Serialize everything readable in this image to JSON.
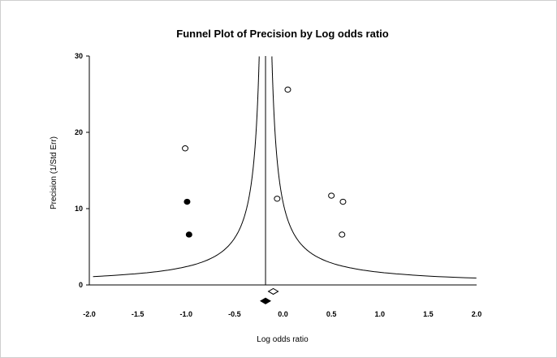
{
  "chart_data": {
    "type": "scatter",
    "title": "Funnel Plot of Precision by Log odds ratio",
    "xlabel": "Log odds ratio",
    "ylabel": "Precision (1/Std Err)",
    "xlim": [
      -2.0,
      2.0
    ],
    "ylim": [
      0,
      30
    ],
    "x_ticks": [
      "-2.0",
      "-1.5",
      "-1.0",
      "-0.5",
      "0.0",
      "0.5",
      "1.0",
      "1.5",
      "2.0"
    ],
    "y_ticks": [
      "0",
      "10",
      "20",
      "30"
    ],
    "pooled_estimate": -0.18,
    "adjusted_estimate": -0.1,
    "grid": false,
    "legend": "none",
    "series": [
      {
        "marker": "open-circle",
        "points": [
          {
            "x": -1.01,
            "y": 17.9
          },
          {
            "x": 0.05,
            "y": 25.6
          },
          {
            "x": -0.06,
            "y": 11.3
          },
          {
            "x": 0.5,
            "y": 11.7
          },
          {
            "x": 0.62,
            "y": 10.9
          },
          {
            "x": 0.61,
            "y": 6.6
          }
        ]
      },
      {
        "marker": "filled-circle",
        "points": [
          {
            "x": -0.99,
            "y": 10.9
          },
          {
            "x": -0.97,
            "y": 6.6
          }
        ]
      }
    ],
    "diamonds": [
      {
        "style": "open",
        "x": -0.1,
        "y": -0.85
      },
      {
        "style": "filled",
        "x": -0.18,
        "y": -2.1
      }
    ],
    "colors": {
      "line": "#000000",
      "marker": "#000000",
      "background": "#ffffff"
    }
  }
}
